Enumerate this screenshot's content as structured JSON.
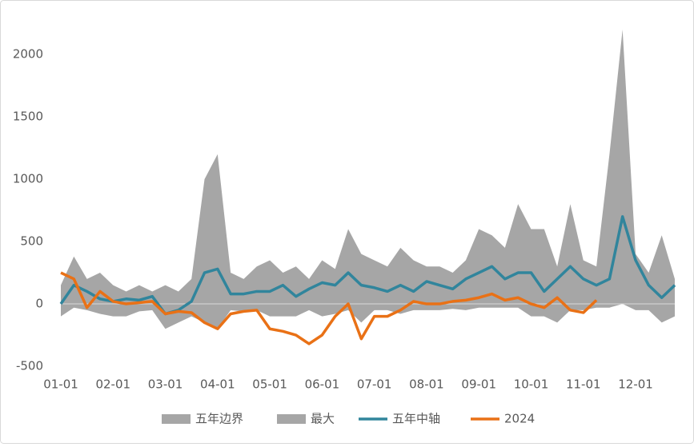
{
  "chart_data": {
    "type": "line",
    "categories": [
      "01-01",
      null,
      null,
      null,
      "02-01",
      null,
      null,
      null,
      "03-01",
      null,
      null,
      null,
      "04-01",
      null,
      null,
      null,
      "05-01",
      null,
      null,
      null,
      "06-01",
      null,
      null,
      null,
      "07-01",
      null,
      null,
      null,
      "08-01",
      null,
      null,
      null,
      "09-01",
      null,
      null,
      null,
      "10-01",
      null,
      null,
      null,
      "11-01",
      null,
      null,
      null,
      "12-01",
      null,
      null,
      null
    ],
    "series": [
      {
        "name": "五年边界",
        "kind": "area",
        "color": "#a6a6a6",
        "values": [
          -100,
          -30,
          -50,
          -80,
          -100,
          -100,
          -60,
          -50,
          -200,
          -150,
          -100,
          -150,
          -200,
          -50,
          -60,
          -50,
          -100,
          -100,
          -100,
          -50,
          -100,
          -80,
          -50,
          -150,
          -50,
          -50,
          -80,
          -50,
          -50,
          -50,
          -40,
          -50,
          -30,
          -30,
          -30,
          -30,
          -100,
          -100,
          -150,
          -50,
          -50,
          -30,
          -30,
          0,
          -50,
          -50,
          -150,
          -100
        ]
      },
      {
        "name": "最大",
        "kind": "area",
        "color": "#a6a6a6",
        "values": [
          150,
          380,
          200,
          250,
          150,
          100,
          150,
          100,
          150,
          100,
          200,
          1000,
          1200,
          250,
          200,
          300,
          350,
          250,
          300,
          200,
          350,
          280,
          600,
          400,
          350,
          300,
          450,
          350,
          300,
          300,
          250,
          350,
          600,
          550,
          450,
          800,
          600,
          600,
          300,
          800,
          350,
          300,
          1200,
          2200,
          400,
          250,
          550,
          200
        ]
      },
      {
        "name": "五年中轴",
        "kind": "line",
        "color": "#31859c",
        "values": [
          0,
          150,
          100,
          40,
          20,
          40,
          30,
          60,
          -80,
          -50,
          20,
          250,
          280,
          80,
          80,
          100,
          100,
          150,
          60,
          120,
          170,
          150,
          250,
          150,
          130,
          100,
          150,
          100,
          180,
          150,
          120,
          200,
          250,
          300,
          200,
          250,
          250,
          100,
          200,
          300,
          200,
          150,
          200,
          700,
          350,
          150,
          50,
          150
        ]
      },
      {
        "name": "2024",
        "kind": "line",
        "color": "#e97116",
        "values": [
          250,
          200,
          -30,
          100,
          20,
          0,
          10,
          20,
          -80,
          -60,
          -70,
          -150,
          -200,
          -80,
          -60,
          -50,
          -200,
          -220,
          -250,
          -320,
          -250,
          -100,
          0,
          -280,
          -100,
          -100,
          -50,
          20,
          0,
          0,
          20,
          30,
          50,
          80,
          30,
          50,
          0,
          -30,
          50,
          -50,
          -70,
          30,
          null,
          null,
          null,
          null,
          null,
          null
        ]
      }
    ],
    "ylim": [
      -500,
      2200
    ],
    "yticks": [
      -500,
      0,
      500,
      1000,
      1500,
      2000
    ]
  }
}
